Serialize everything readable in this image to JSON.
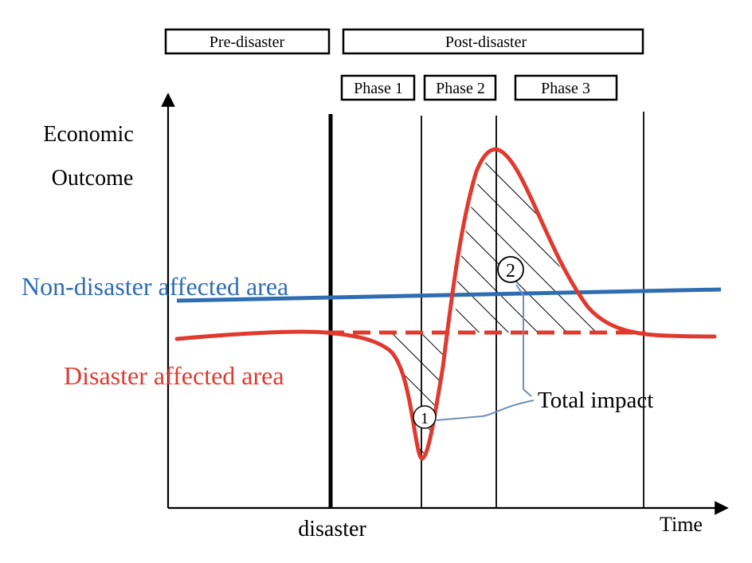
{
  "headers": {
    "pre_disaster": "Pre-disaster",
    "post_disaster": "Post-disaster",
    "phase1": "Phase 1",
    "phase2": "Phase 2",
    "phase3": "Phase 3"
  },
  "axes": {
    "y_label_line1": "Economic",
    "y_label_line2": "Outcome",
    "x_label": "Time",
    "event_label": "disaster"
  },
  "legend": {
    "non_affected": "Non-disaster affected area",
    "affected": "Disaster affected area"
  },
  "annotations": {
    "total_impact": "Total impact",
    "marker_1": "1",
    "marker_2": "2"
  },
  "colors": {
    "non_affected": "#2f6db3",
    "affected": "#e03a2f",
    "callout": "#6f8fb8",
    "axis": "#000000"
  }
}
